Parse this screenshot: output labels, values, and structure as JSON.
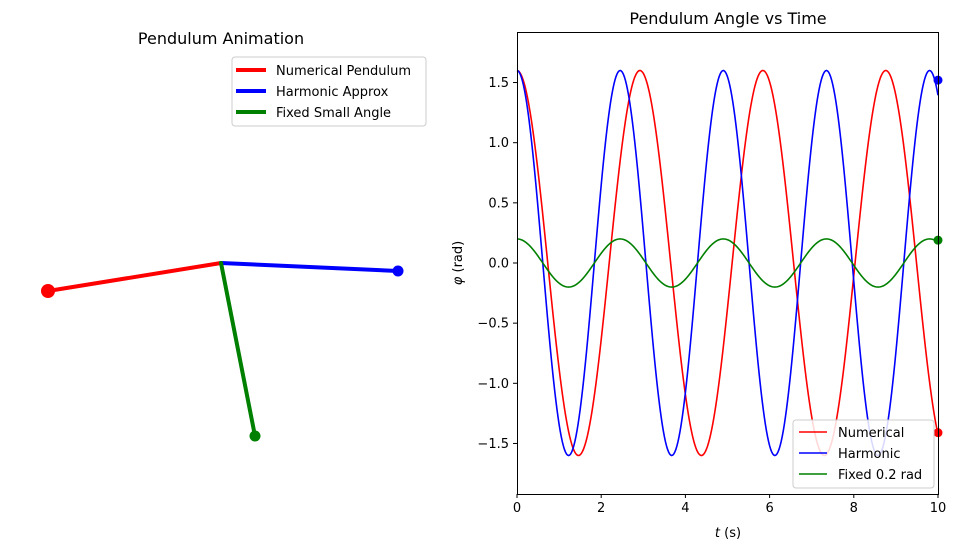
{
  "colors": {
    "numerical": "#ff0000",
    "harmonic": "#0000ff",
    "fixed": "#008000",
    "axis": "#000000",
    "legend_border": "#cccccc"
  },
  "left_panel": {
    "title": "Pendulum Animation",
    "legend": [
      {
        "label": "Numerical Pendulum",
        "color": "#ff0000"
      },
      {
        "label": "Harmonic Approx",
        "color": "#0000ff"
      },
      {
        "label": "Fixed Small Angle",
        "color": "#008000"
      }
    ],
    "pendulums": {
      "numerical_bob": {
        "dx": -1.73,
        "dy": -0.28
      },
      "harmonic_bob": {
        "dx": 1.77,
        "dy": -0.08
      },
      "fixed_bob": {
        "dx": 0.34,
        "dy": -1.73
      }
    }
  },
  "chart_data": {
    "type": "line",
    "title": "Pendulum Angle vs Time",
    "xlabel": "t (s)",
    "xlabel_var": "t",
    "xlabel_unit": " (s)",
    "ylabel": "φ (rad)",
    "ylabel_var": "φ",
    "ylabel_unit": " (rad)",
    "xlim": [
      0,
      10
    ],
    "ylim": [
      -1.92,
      1.92
    ],
    "xticks": [
      0,
      2,
      4,
      6,
      8,
      10
    ],
    "xtick_labels": [
      "0",
      "2",
      "4",
      "6",
      "8",
      "10"
    ],
    "yticks": [
      -1.5,
      -1.0,
      -0.5,
      0.0,
      0.5,
      1.0,
      1.5
    ],
    "ytick_labels": [
      "−1.5",
      "−1.0",
      "−0.5",
      "0.0",
      "0.5",
      "1.0",
      "1.5"
    ],
    "series": [
      {
        "name": "Numerical",
        "color": "#ff0000",
        "amplitude": 1.6,
        "period": 2.92,
        "end_value": -1.41
      },
      {
        "name": "Harmonic",
        "color": "#0000ff",
        "amplitude": 1.6,
        "period": 2.45,
        "end_value": 1.52
      },
      {
        "name": "Fixed 0.2 rad",
        "color": "#008000",
        "amplitude": 0.2,
        "period": 2.45,
        "end_value": 0.19
      }
    ],
    "legend_position": "lower-right"
  }
}
